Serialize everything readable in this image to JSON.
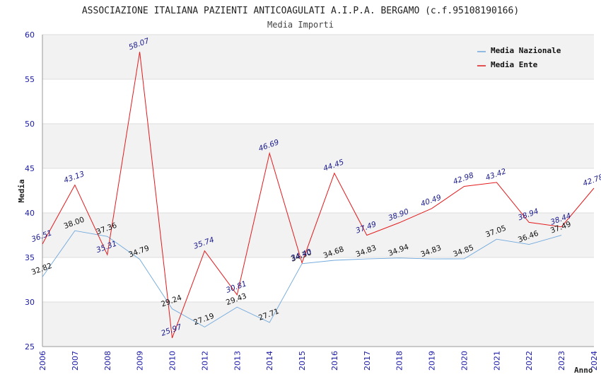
{
  "chart_data": {
    "type": "line",
    "title": "ASSOCIAZIONE ITALIANA PAZIENTI ANTICOAGULATI A.I.P.A. BERGAMO (c.f.95108190166)",
    "subtitle": "Media Importi",
    "xlabel": "Anno",
    "ylabel": "Media",
    "ylim": [
      25,
      60
    ],
    "yticks": [
      "25",
      "30",
      "35",
      "40",
      "45",
      "50",
      "55",
      "60"
    ],
    "categories": [
      "2006",
      "2007",
      "2008",
      "2009",
      "2010",
      "2012",
      "2013",
      "2014",
      "2015",
      "2016",
      "2017",
      "2018",
      "2019",
      "2020",
      "2021",
      "2022",
      "2023",
      "2024"
    ],
    "series": [
      {
        "name": "Media Nazionale",
        "color": "#6fa8dc",
        "values": [
          32.82,
          38.0,
          37.36,
          34.79,
          29.24,
          27.19,
          29.43,
          27.71,
          34.3,
          34.68,
          34.83,
          34.94,
          34.83,
          34.85,
          37.05,
          36.46,
          37.49,
          null
        ],
        "labels": [
          "32.82",
          "38.00",
          "37.36",
          "34.79",
          "29.24",
          "27.19",
          "29.43",
          "27.71",
          "34.30",
          "34.68",
          "34.83",
          "34.94",
          "34.83",
          "34.85",
          "37.05",
          "36.46",
          "37.49",
          ""
        ]
      },
      {
        "name": "Media Ente",
        "color": "#e31a1c",
        "values": [
          36.51,
          43.13,
          35.31,
          58.07,
          25.97,
          35.74,
          30.81,
          46.69,
          34.4,
          44.45,
          37.49,
          38.9,
          40.49,
          42.98,
          43.42,
          38.94,
          38.44,
          42.78
        ],
        "labels": [
          "36.51",
          "43.13",
          "35.31",
          "58.07",
          "25.97",
          "35.74",
          "30.81",
          "46.69",
          "34.40",
          "44.45",
          "37.49",
          "38.90",
          "40.49",
          "42.98",
          "43.42",
          "38.94",
          "38.44",
          "42.78"
        ]
      }
    ],
    "grid": "horizontal bands",
    "legend": "top-right"
  }
}
